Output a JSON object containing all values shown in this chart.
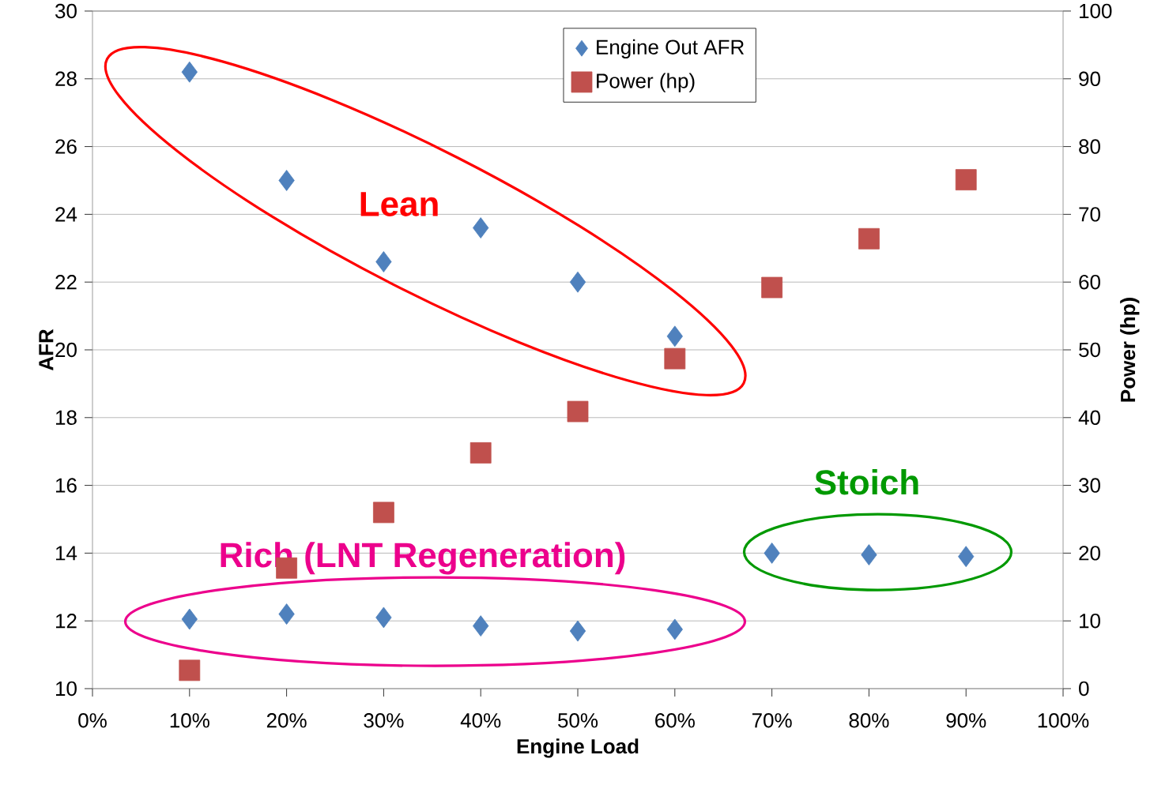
{
  "chart_data": {
    "type": "scatter",
    "xlabel": "Engine Load",
    "ylabel": "AFR",
    "y2label": "Power (hp)",
    "xlim": [
      0,
      100
    ],
    "xticks": [
      {
        "value": 0,
        "label": "0%"
      },
      {
        "value": 10,
        "label": "10%"
      },
      {
        "value": 20,
        "label": "20%"
      },
      {
        "value": 30,
        "label": "30%"
      },
      {
        "value": 40,
        "label": "40%"
      },
      {
        "value": 50,
        "label": "50%"
      },
      {
        "value": 60,
        "label": "60%"
      },
      {
        "value": 70,
        "label": "70%"
      },
      {
        "value": 80,
        "label": "80%"
      },
      {
        "value": 90,
        "label": "90%"
      },
      {
        "value": 100,
        "label": "100%"
      }
    ],
    "ylim": [
      10,
      30
    ],
    "yticks": [
      10,
      12,
      14,
      16,
      18,
      20,
      22,
      24,
      26,
      28,
      30
    ],
    "y2lim": [
      0,
      100
    ],
    "y2ticks": [
      0,
      10,
      20,
      30,
      40,
      50,
      60,
      70,
      80,
      90,
      100
    ],
    "grid": "y",
    "legend": "top",
    "series": [
      {
        "name": "Engine Out AFR",
        "color": "#4f81bd",
        "marker": "diamond",
        "x": [
          10,
          20,
          30,
          40,
          50,
          60,
          70,
          80,
          90,
          10,
          20,
          30,
          40,
          50,
          60
        ],
        "values": [
          28.2,
          25.0,
          22.6,
          23.6,
          22.0,
          20.4,
          14.0,
          13.95,
          13.9,
          12.05,
          12.2,
          12.1,
          11.85,
          11.7,
          11.75
        ]
      },
      {
        "name": "Power (hp)",
        "color": "#c0504d",
        "marker": "square",
        "axis": "y2",
        "x": [
          10,
          20,
          30,
          40,
          50,
          60,
          70,
          80,
          90
        ],
        "values": [
          2.7,
          17.8,
          26,
          34.8,
          40.9,
          48.7,
          59.2,
          66.4,
          75.1
        ]
      }
    ],
    "annotations": [
      "Lean",
      "Stoich",
      "Rich  (LNT Regeneration)"
    ]
  }
}
